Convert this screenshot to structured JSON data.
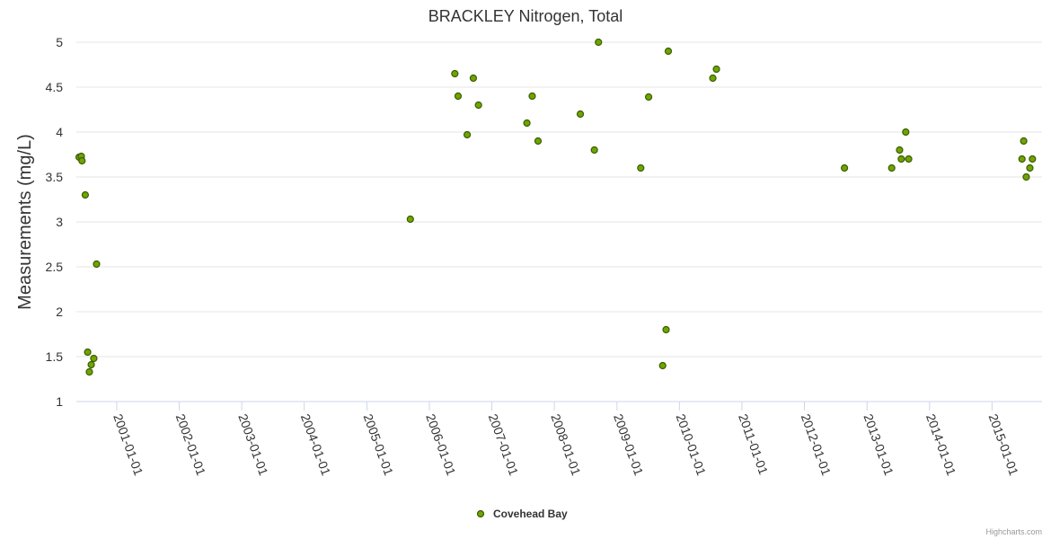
{
  "chart_data": {
    "type": "scatter",
    "title": "BRACKLEY Nitrogen, Total",
    "ylabel": "Measurements (mg/L)",
    "ylim": [
      1,
      5
    ],
    "yticks": [
      "1",
      "1.5",
      "2",
      "2.5",
      "3",
      "3.5",
      "4",
      "4.5",
      "5"
    ],
    "xticks": [
      "2001-01-01",
      "2002-01-01",
      "2003-01-01",
      "2004-01-01",
      "2005-01-01",
      "2006-01-01",
      "2007-01-01",
      "2008-01-01",
      "2009-01-01",
      "2010-01-01",
      "2011-01-01",
      "2012-01-01",
      "2013-01-01",
      "2014-01-01",
      "2015-01-01"
    ],
    "xlim": [
      "2000-05-10",
      "2015-10-20"
    ],
    "grid": true,
    "legend_position": "bottom-center",
    "series": [
      {
        "name": "Covehead Bay",
        "color": "#6ea600",
        "marker_fill": "#6ea600",
        "marker_stroke": "#3d5c00",
        "points": [
          [
            "2000-05-26",
            3.72
          ],
          [
            "2000-06-08",
            3.73
          ],
          [
            "2000-06-12",
            3.68
          ],
          [
            "2000-07-01",
            3.3
          ],
          [
            "2000-07-15",
            1.55
          ],
          [
            "2000-07-25",
            1.33
          ],
          [
            "2000-08-05",
            1.41
          ],
          [
            "2000-08-20",
            1.48
          ],
          [
            "2000-09-05",
            2.53
          ],
          [
            "2005-09-12",
            3.03
          ],
          [
            "2006-05-30",
            4.65
          ],
          [
            "2006-06-18",
            4.4
          ],
          [
            "2006-08-10",
            3.97
          ],
          [
            "2006-09-15",
            4.6
          ],
          [
            "2006-10-15",
            4.3
          ],
          [
            "2007-07-25",
            4.1
          ],
          [
            "2007-08-25",
            4.4
          ],
          [
            "2007-09-28",
            3.9
          ],
          [
            "2008-06-01",
            4.2
          ],
          [
            "2008-08-22",
            3.8
          ],
          [
            "2008-09-15",
            5.0
          ],
          [
            "2009-05-20",
            3.6
          ],
          [
            "2009-07-05",
            4.39
          ],
          [
            "2009-09-25",
            1.4
          ],
          [
            "2009-10-15",
            1.8
          ],
          [
            "2009-10-28",
            4.9
          ],
          [
            "2010-07-15",
            4.6
          ],
          [
            "2010-08-05",
            4.7
          ],
          [
            "2012-08-22",
            3.6
          ],
          [
            "2013-05-25",
            3.6
          ],
          [
            "2013-07-10",
            3.8
          ],
          [
            "2013-07-20",
            3.7
          ],
          [
            "2013-08-15",
            4.0
          ],
          [
            "2013-09-01",
            3.7
          ],
          [
            "2015-06-25",
            3.7
          ],
          [
            "2015-07-05",
            3.9
          ],
          [
            "2015-07-20",
            3.5
          ],
          [
            "2015-08-10",
            3.6
          ],
          [
            "2015-08-25",
            3.7
          ]
        ]
      }
    ]
  },
  "legend": {
    "label": "Covehead Bay"
  },
  "credits": "Highcharts.com"
}
